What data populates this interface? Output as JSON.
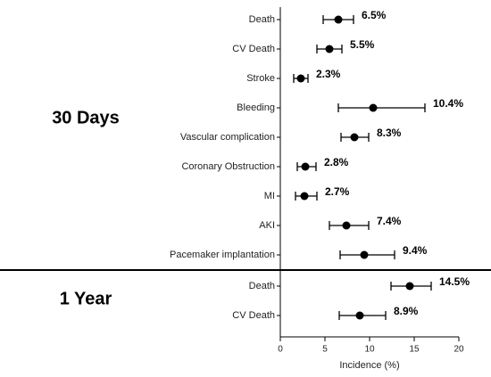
{
  "chart_data": [
    {
      "type": "forest",
      "group": "30 Days",
      "categories": [
        "Death",
        "CV Death",
        "Stroke",
        "Bleeding",
        "Vascular complication",
        "Coronary Obstruction",
        "MI",
        "AKI",
        "Pacemaker implantation"
      ],
      "values": [
        6.5,
        5.5,
        2.3,
        10.4,
        8.3,
        2.8,
        2.7,
        7.4,
        9.4
      ],
      "value_labels": [
        "6.5%",
        "5.5%",
        "2.3%",
        "10.4%",
        "8.3%",
        "2.8%",
        "2.7%",
        "7.4%",
        "9.4%"
      ],
      "ci_low": [
        4.8,
        4.1,
        1.5,
        6.5,
        6.8,
        1.9,
        1.7,
        5.5,
        6.7
      ],
      "ci_high": [
        8.2,
        6.9,
        3.1,
        16.2,
        9.9,
        4.0,
        4.1,
        9.9,
        12.8
      ],
      "xlim": [
        0,
        20
      ],
      "color": "#000000"
    },
    {
      "type": "forest",
      "group": "1 Year",
      "categories": [
        "Death",
        "CV Death"
      ],
      "values": [
        14.5,
        8.9
      ],
      "value_labels": [
        "14.5%",
        "8.9%"
      ],
      "ci_low": [
        12.4,
        6.6
      ],
      "ci_high": [
        16.9,
        11.8
      ],
      "xlim": [
        0,
        20
      ],
      "xticks": [
        0,
        5,
        10,
        15,
        20
      ],
      "xlabel": "Incidence (%)",
      "color": "#000000"
    }
  ]
}
